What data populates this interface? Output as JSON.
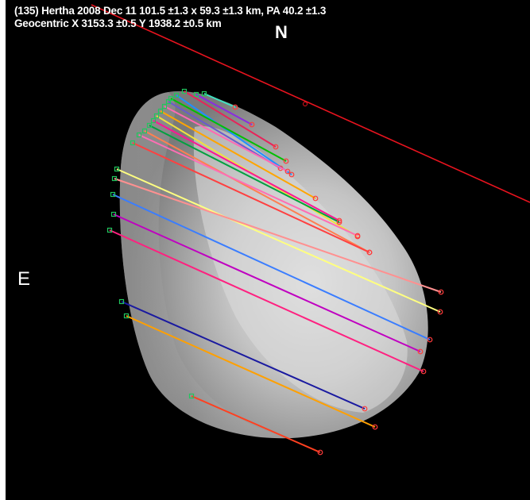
{
  "title": "(135) Hertha 2008 Dec 11  101.5 ±1.3 x 59.3 ±1.3 km, PA 40.2 ±1.3",
  "geocentric": "Geocentric X 3153.3 ±0.5  Y 1938.2 ±0.5 km",
  "compass": {
    "north": "N",
    "east": "E"
  },
  "colors": {
    "background": "#000000",
    "text": "#ffffff",
    "north_line": "#e8131e",
    "shape_fill": "#9a9a9a",
    "shape_highlight": "#d8d8d8"
  },
  "chords": [
    {
      "color": "#40e0c0"
    },
    {
      "color": "#8a2be2"
    },
    {
      "color": "#e8235a"
    },
    {
      "color": "#1e90ff"
    },
    {
      "color": "#00c000"
    },
    {
      "color": "#6a5acd"
    },
    {
      "color": "#ff69b4"
    },
    {
      "color": "#ffa500"
    },
    {
      "color": "#f0e040"
    },
    {
      "color": "#ff1493"
    },
    {
      "color": "#00a040"
    },
    {
      "color": "#ff7f50"
    },
    {
      "color": "#ff6eb4"
    },
    {
      "color": "#ff4040"
    },
    {
      "color": "#ffff80"
    },
    {
      "color": "#ff9090"
    },
    {
      "color": "#3a7dff"
    },
    {
      "color": "#c000c0"
    },
    {
      "color": "#ff2080"
    },
    {
      "color": "#1a1aa0"
    },
    {
      "color": "#ffa000"
    },
    {
      "color": "#ff4020"
    }
  ]
}
